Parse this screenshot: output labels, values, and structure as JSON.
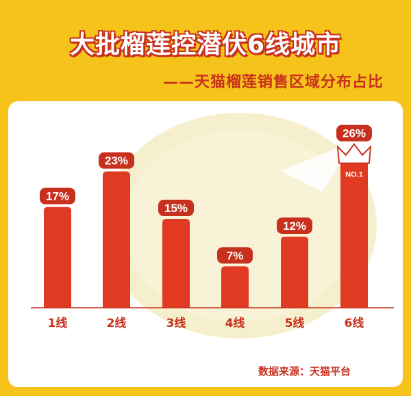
{
  "title": "大批榴莲控潜伏6线城市",
  "subtitle": "——天猫榴莲销售区域分布占比",
  "source": "数据来源：天猫平台",
  "crown_label": "NO.1",
  "colors": {
    "background": "#F6C31A",
    "bar": "#E03A22",
    "label_bg": "#C8301E",
    "text": "#C8301E"
  },
  "chart_data": {
    "type": "bar",
    "categories": [
      "1线",
      "2线",
      "3线",
      "4线",
      "5线",
      "6线"
    ],
    "values": [
      17,
      23,
      15,
      7,
      12,
      26
    ],
    "value_labels": [
      "17%",
      "23%",
      "15%",
      "7%",
      "12%",
      "26%"
    ],
    "title": "",
    "xlabel": "",
    "ylabel": "",
    "ylim": [
      0,
      30
    ],
    "grid": false,
    "highlight_index": 5
  }
}
